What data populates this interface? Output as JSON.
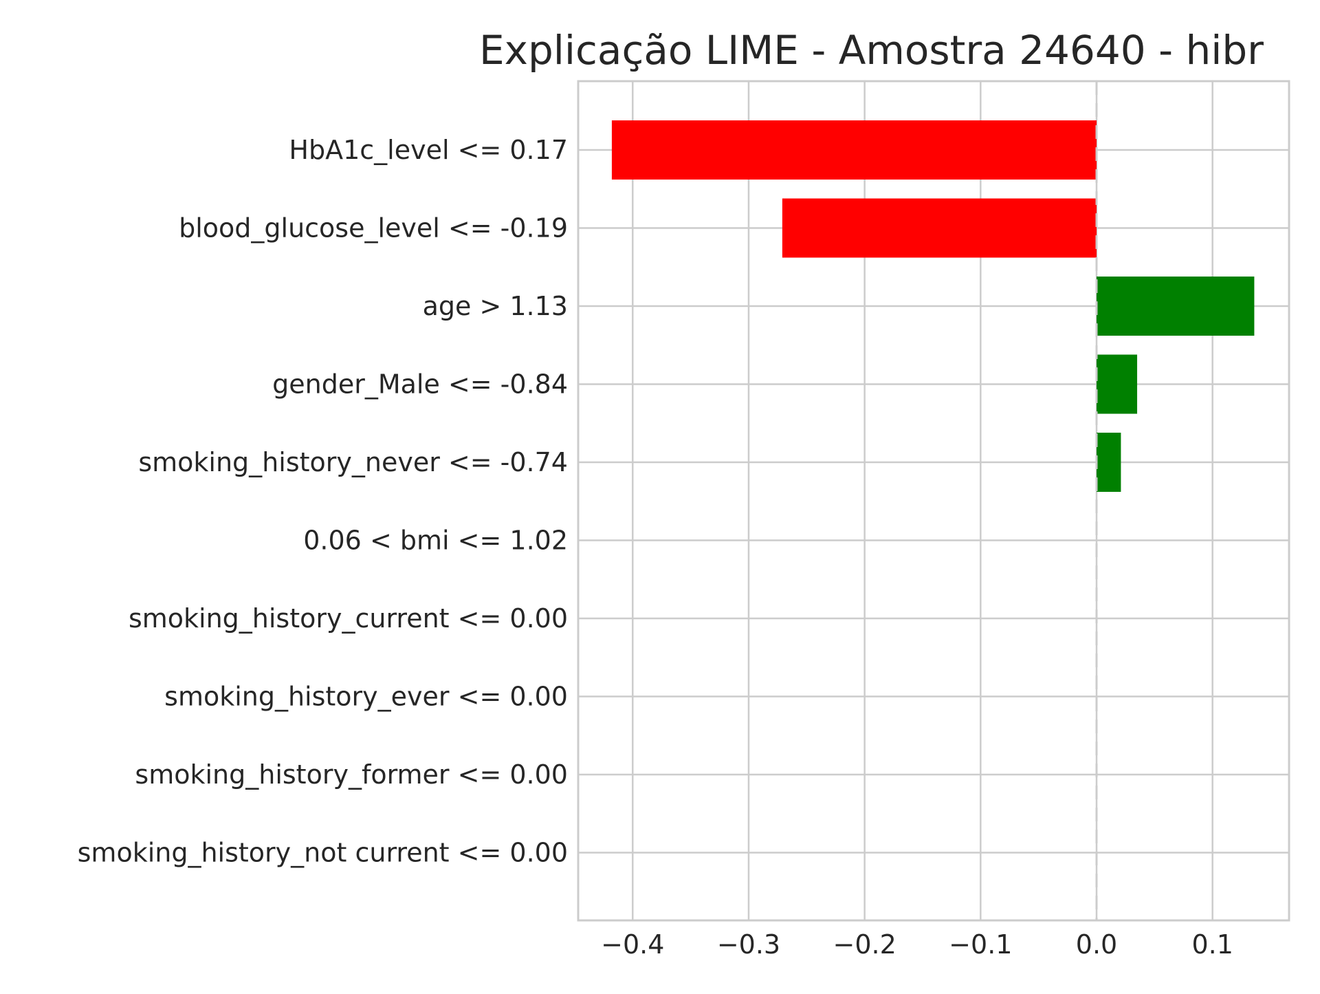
{
  "chart_data": {
    "type": "bar",
    "orientation": "horizontal",
    "title": "Explicação LIME - Amostra 24640 - hibr",
    "xlabel": "",
    "ylabel": "",
    "categories": [
      "HbA1c_level <= 0.17",
      "blood_glucose_level <= -0.19",
      "age > 1.13",
      "gender_Male <= -0.84",
      "smoking_history_never <= -0.74",
      "0.06 < bmi <= 1.02",
      "smoking_history_current <= 0.00",
      "smoking_history_ever <= 0.00",
      "smoking_history_former <= 0.00",
      "smoking_history_not current <= 0.00"
    ],
    "values": [
      -0.418,
      -0.271,
      0.136,
      0.035,
      0.021,
      0.0,
      0.0,
      0.0,
      0.0,
      0.0
    ],
    "xlim": [
      -0.447,
      0.166
    ],
    "xticks": [
      -0.4,
      -0.3,
      -0.2,
      -0.1,
      0.0,
      0.1
    ],
    "xtick_labels": [
      "−0.4",
      "−0.3",
      "−0.2",
      "−0.1",
      "0.0",
      "0.1"
    ],
    "grid": true,
    "zero_line": "dashed",
    "colors": {
      "positive": "#008000",
      "negative": "#ff0000",
      "grid": "#cccccc",
      "zero_line": "#cccccc",
      "text": "#262626"
    }
  }
}
